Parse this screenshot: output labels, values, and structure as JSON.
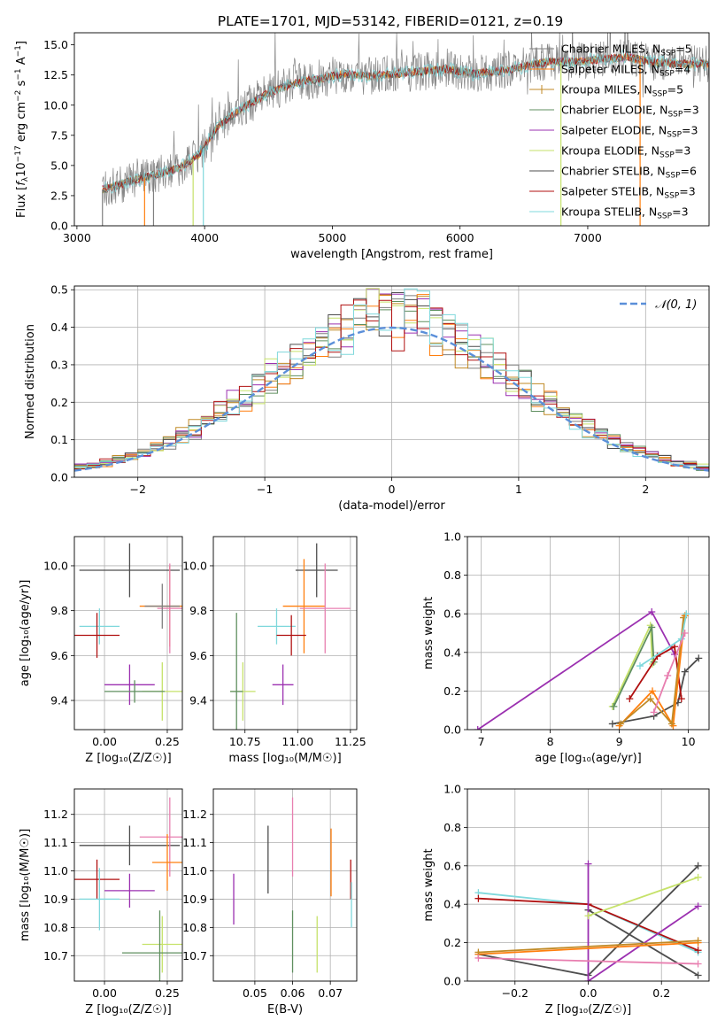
{
  "page": {
    "title": "PLATE=1701, MJD=53142, FIBERID=0121, z=0.19"
  },
  "colors": {
    "chabrier_miles": "#7f7f7f",
    "salpeter_miles": "#ff7f0e",
    "kroupa_miles": "#c08a26",
    "chabrier_elodie": "#5f8f5f",
    "salpeter_elodie": "#9b30b0",
    "kroupa_elodie": "#c6e26a",
    "chabrier_stelib": "#4d4d4d",
    "salpeter_stelib": "#b01010",
    "kroupa_stelib": "#7fd8dc",
    "pink": "#e87fb0",
    "normal_curve": "#5b8fd9",
    "grid": "#b0b0b0"
  },
  "chart_data": [
    {
      "id": "spectrum",
      "type": "line",
      "title": "PLATE=1701, MJD=53142, FIBERID=0121, z=0.19",
      "xlabel": "wavelength [Angstrom, rest frame]",
      "ylabel_parts": [
        "Flux [",
        "f",
        "λ",
        "10",
        "−17",
        " erg cm",
        "−2",
        " s",
        "−1",
        " A",
        "−1",
        "]"
      ],
      "xlim": [
        2980,
        7950
      ],
      "ylim": [
        0,
        16
      ],
      "xticks": [
        3000,
        4000,
        5000,
        6000,
        7000
      ],
      "yticks": [
        0.0,
        2.5,
        5.0,
        7.5,
        10.0,
        12.5,
        15.0
      ],
      "grid": false,
      "legend_position": "top-right",
      "series": [
        {
          "name": "Chabrier MILES",
          "nssp": "5",
          "color_key": "chabrier_miles"
        },
        {
          "name": "Salpeter MILES",
          "nssp": "4",
          "color_key": "salpeter_miles"
        },
        {
          "name": "Kroupa MILES",
          "nssp": "5",
          "color_key": "kroupa_miles"
        },
        {
          "name": "Chabrier ELODIE",
          "nssp": "3",
          "color_key": "chabrier_elodie"
        },
        {
          "name": "Salpeter ELODIE",
          "nssp": "3",
          "color_key": "salpeter_elodie"
        },
        {
          "name": "Kroupa ELODIE",
          "nssp": "3",
          "color_key": "kroupa_elodie"
        },
        {
          "name": "Chabrier STELIB",
          "nssp": "6",
          "color_key": "chabrier_stelib"
        },
        {
          "name": "Salpeter STELIB",
          "nssp": "3",
          "color_key": "salpeter_stelib"
        },
        {
          "name": "Kroupa STELIB",
          "nssp": "3",
          "color_key": "kroupa_stelib"
        }
      ],
      "continuum_x": [
        3200,
        3400,
        3600,
        3800,
        3950,
        4100,
        4300,
        4500,
        4700,
        4900,
        5100,
        5300,
        5500,
        5700,
        5900,
        6100,
        6300,
        6500,
        6700,
        6900,
        7100,
        7300,
        7500,
        7700
      ],
      "continuum_y": [
        3.0,
        3.6,
        4.2,
        4.8,
        5.8,
        8.2,
        9.8,
        11.0,
        11.8,
        12.2,
        12.6,
        12.4,
        12.6,
        12.8,
        13.0,
        12.6,
        12.8,
        13.2,
        13.6,
        13.6,
        13.8,
        14.0,
        13.6,
        13.4
      ],
      "drops": [
        {
          "x": 3200,
          "color_key": "chabrier_miles"
        },
        {
          "x": 3530,
          "color_key": "salpeter_miles"
        },
        {
          "x": 3600,
          "color_key": "chabrier_miles"
        },
        {
          "x": 3910,
          "color_key": "kroupa_elodie"
        },
        {
          "x": 3990,
          "color_key": "kroupa_stelib"
        },
        {
          "x": 6790,
          "color_key": "kroupa_elodie"
        },
        {
          "x": 7410,
          "color_key": "salpeter_miles"
        }
      ]
    },
    {
      "id": "residuals",
      "type": "histogram",
      "xlabel": "(data-model)/error",
      "ylabel": "Normed distribution",
      "xlim": [
        -2.5,
        2.5
      ],
      "ylim": [
        0,
        0.51
      ],
      "xticks": [
        -2,
        -1,
        0,
        1,
        2
      ],
      "yticks": [
        0.0,
        0.1,
        0.2,
        0.3,
        0.4,
        0.5
      ],
      "grid": true,
      "legend_position": "top-right",
      "legend_label": "𝒩(0, 1)",
      "bin_width": 0.1
    },
    {
      "id": "age_vs_z",
      "type": "errorbar",
      "xlabel": "Z [log₁₀(Z/Z☉)]",
      "ylabel": "age  [log₁₀(age/yr)]",
      "xlim": [
        -0.12,
        0.31
      ],
      "ylim": [
        9.27,
        10.13
      ],
      "xticks": [
        0.0,
        0.25
      ],
      "yticks": [
        9.4,
        9.6,
        9.8,
        10.0
      ],
      "grid": true,
      "points": [
        {
          "x": 0.1,
          "y": 9.98,
          "xerr": 0.2,
          "yerr": 0.12,
          "color_key": "chabrier_stelib"
        },
        {
          "x": 0.26,
          "y": 9.82,
          "xerr": 0.12,
          "yerr": 0.18,
          "color_key": "salpeter_miles"
        },
        {
          "x": 0.26,
          "y": 9.81,
          "xerr": 0.05,
          "yerr": 0.2,
          "color_key": "pink"
        },
        {
          "x": 0.23,
          "y": 9.82,
          "xerr": 0.07,
          "yerr": 0.1,
          "color_key": "chabrier_miles"
        },
        {
          "x": -0.02,
          "y": 9.73,
          "xerr": 0.08,
          "yerr": 0.08,
          "color_key": "kroupa_stelib"
        },
        {
          "x": -0.03,
          "y": 9.69,
          "xerr": 0.09,
          "yerr": 0.1,
          "color_key": "salpeter_stelib"
        },
        {
          "x": 0.1,
          "y": 9.47,
          "xerr": 0.1,
          "yerr": 0.09,
          "color_key": "salpeter_elodie"
        },
        {
          "x": 0.23,
          "y": 9.44,
          "xerr": 0.08,
          "yerr": 0.13,
          "color_key": "kroupa_elodie"
        },
        {
          "x": 0.12,
          "y": 9.44,
          "xerr": 0.12,
          "yerr": 0.05,
          "color_key": "chabrier_elodie"
        }
      ]
    },
    {
      "id": "age_vs_mass",
      "type": "errorbar",
      "xlabel": "mass [log₁₀(M/M☉)]",
      "ylabel": "",
      "xlim": [
        10.6,
        11.28
      ],
      "ylim": [
        9.27,
        10.13
      ],
      "xticks": [
        10.75,
        11.0,
        11.25
      ],
      "yticks": [
        9.4,
        9.6,
        9.8,
        10.0
      ],
      "grid": true,
      "points": [
        {
          "x": 11.09,
          "y": 9.98,
          "xerr": 0.1,
          "yerr": 0.12,
          "color_key": "chabrier_stelib"
        },
        {
          "x": 11.03,
          "y": 9.82,
          "xerr": 0.1,
          "yerr": 0.21,
          "color_key": "salpeter_miles"
        },
        {
          "x": 11.13,
          "y": 9.81,
          "xerr": 0.12,
          "yerr": 0.2,
          "color_key": "pink"
        },
        {
          "x": 10.9,
          "y": 9.73,
          "xerr": 0.09,
          "yerr": 0.08,
          "color_key": "kroupa_stelib"
        },
        {
          "x": 10.97,
          "y": 9.69,
          "xerr": 0.07,
          "yerr": 0.09,
          "color_key": "salpeter_stelib"
        },
        {
          "x": 10.93,
          "y": 9.47,
          "xerr": 0.05,
          "yerr": 0.09,
          "color_key": "salpeter_elodie"
        },
        {
          "x": 10.74,
          "y": 9.44,
          "xerr": 0.06,
          "yerr": 0.13,
          "color_key": "kroupa_elodie"
        },
        {
          "x": 10.71,
          "y": 9.44,
          "xerr": 0.03,
          "yerr": 0.35,
          "color_key": "chabrier_elodie"
        }
      ]
    },
    {
      "id": "mw_vs_age",
      "type": "line",
      "xlabel": "age  [log₁₀(age/yr)]",
      "ylabel": "mass weight",
      "xlim": [
        6.8,
        10.3
      ],
      "ylim": [
        0,
        1
      ],
      "xticks": [
        7,
        8,
        9,
        10
      ],
      "yticks": [
        0.0,
        0.2,
        0.4,
        0.6,
        0.8,
        1.0
      ],
      "grid": true,
      "series": [
        {
          "color_key": "salpeter_elodie",
          "x": [
            6.95,
            9.47,
            9.8
          ],
          "y": [
            0.0,
            0.61,
            0.39
          ]
        },
        {
          "color_key": "kroupa_elodie",
          "x": [
            8.9,
            9.45,
            9.48
          ],
          "y": [
            0.12,
            0.54,
            0.34
          ]
        },
        {
          "color_key": "chabrier_elodie",
          "x": [
            8.92,
            9.47,
            9.5
          ],
          "y": [
            0.12,
            0.53,
            0.35
          ]
        },
        {
          "color_key": "chabrier_stelib",
          "x": [
            8.9,
            9.5,
            9.85,
            9.95,
            10.15
          ],
          "y": [
            0.03,
            0.07,
            0.14,
            0.3,
            0.37
          ]
        },
        {
          "color_key": "salpeter_stelib",
          "x": [
            9.15,
            9.55,
            9.8,
            9.9
          ],
          "y": [
            0.16,
            0.38,
            0.43,
            0.16
          ]
        },
        {
          "color_key": "salpeter_miles",
          "x": [
            9.0,
            9.48,
            9.78,
            9.95
          ],
          "y": [
            0.02,
            0.2,
            0.02,
            0.59
          ]
        },
        {
          "color_key": "kroupa_miles",
          "x": [
            9.02,
            9.45,
            9.76,
            9.93
          ],
          "y": [
            0.03,
            0.16,
            0.03,
            0.58
          ]
        },
        {
          "color_key": "kroupa_stelib",
          "x": [
            9.3,
            9.9,
            9.97
          ],
          "y": [
            0.33,
            0.47,
            0.6
          ]
        },
        {
          "color_key": "pink",
          "x": [
            9.5,
            9.7,
            9.95
          ],
          "y": [
            0.09,
            0.28,
            0.5
          ]
        }
      ]
    },
    {
      "id": "mass_vs_z",
      "type": "errorbar",
      "xlabel": "Z [log₁₀(Z/Z☉)]",
      "ylabel": "mass [log₁₀(M/M☉)]",
      "xlim": [
        -0.12,
        0.31
      ],
      "ylim": [
        10.61,
        11.29
      ],
      "xticks": [
        0.0,
        0.25
      ],
      "yticks": [
        10.7,
        10.8,
        10.9,
        11.0,
        11.1,
        11.2
      ],
      "grid": true,
      "points": [
        {
          "x": 0.1,
          "y": 11.09,
          "xerr": 0.2,
          "yerr": 0.07,
          "color_key": "chabrier_stelib"
        },
        {
          "x": 0.26,
          "y": 11.12,
          "xerr": 0.12,
          "yerr": 0.14,
          "color_key": "pink"
        },
        {
          "x": 0.25,
          "y": 11.03,
          "xerr": 0.06,
          "yerr": 0.1,
          "color_key": "salpeter_miles"
        },
        {
          "x": -0.03,
          "y": 10.97,
          "xerr": 0.09,
          "yerr": 0.07,
          "color_key": "salpeter_stelib"
        },
        {
          "x": 0.1,
          "y": 10.93,
          "xerr": 0.1,
          "yerr": 0.06,
          "color_key": "salpeter_elodie"
        },
        {
          "x": -0.02,
          "y": 10.9,
          "xerr": 0.08,
          "yerr": 0.11,
          "color_key": "kroupa_stelib"
        },
        {
          "x": 0.23,
          "y": 10.74,
          "xerr": 0.08,
          "yerr": 0.1,
          "color_key": "kroupa_elodie"
        },
        {
          "x": 0.22,
          "y": 10.71,
          "xerr": 0.15,
          "yerr": 0.15,
          "color_key": "chabrier_elodie"
        }
      ]
    },
    {
      "id": "mass_vs_ebv",
      "type": "errorbar",
      "xlabel": "E(B-V)",
      "ylabel": "",
      "xlim": [
        0.039,
        0.077
      ],
      "ylim": [
        10.61,
        11.29
      ],
      "xticks": [
        0.05,
        0.06,
        0.07
      ],
      "yticks": [
        10.7,
        10.8,
        10.9,
        11.0,
        11.1,
        11.2
      ],
      "grid": true,
      "points": [
        {
          "x": 0.0444,
          "y": 10.9,
          "xerr": 0,
          "yerr": 0.09,
          "color_key": "salpeter_elodie"
        },
        {
          "x": 0.0535,
          "y": 11.04,
          "xerr": 0,
          "yerr": 0.12,
          "color_key": "chabrier_stelib"
        },
        {
          "x": 0.06,
          "y": 11.12,
          "xerr": 0,
          "yerr": 0.14,
          "color_key": "pink"
        },
        {
          "x": 0.06,
          "y": 10.75,
          "xerr": 0,
          "yerr": 0.11,
          "color_key": "chabrier_elodie"
        },
        {
          "x": 0.0665,
          "y": 10.74,
          "xerr": 0,
          "yerr": 0.1,
          "color_key": "kroupa_elodie"
        },
        {
          "x": 0.0702,
          "y": 11.03,
          "xerr": 0,
          "yerr": 0.12,
          "color_key": "salpeter_miles"
        },
        {
          "x": 0.0754,
          "y": 10.97,
          "xerr": 0,
          "yerr": 0.07,
          "color_key": "salpeter_stelib"
        },
        {
          "x": 0.0756,
          "y": 10.88,
          "xerr": 0,
          "yerr": 0.08,
          "color_key": "kroupa_stelib"
        }
      ]
    },
    {
      "id": "mw_vs_z",
      "type": "line",
      "xlabel": "Z [log₁₀(Z/Z☉)]",
      "ylabel": "mass weight",
      "xlim": [
        -0.33,
        0.33
      ],
      "ylim": [
        0,
        1
      ],
      "xticks": [
        -0.2,
        0.0,
        0.2
      ],
      "yticks": [
        0.0,
        0.2,
        0.4,
        0.6,
        0.8,
        1.0
      ],
      "grid": true,
      "series": [
        {
          "color_key": "kroupa_stelib",
          "x": [
            -0.3,
            0.0,
            0.3
          ],
          "y": [
            0.46,
            0.4,
            0.15
          ]
        },
        {
          "color_key": "salpeter_stelib",
          "x": [
            -0.3,
            0.0,
            0.3
          ],
          "y": [
            0.43,
            0.4,
            0.16
          ]
        },
        {
          "color_key": "chabrier_stelib",
          "x": [
            -0.3,
            0.0,
            0.3
          ],
          "y": [
            0.14,
            0.03,
            0.6
          ]
        },
        {
          "color_key": "chabrier_stelib",
          "x": [
            0.0,
            0.3
          ],
          "y": [
            0.37,
            0.03
          ]
        },
        {
          "color_key": "salpeter_elodie",
          "x": [
            0.0,
            0.0,
            0.3
          ],
          "y": [
            0.61,
            0.0,
            0.39
          ]
        },
        {
          "color_key": "kroupa_elodie",
          "x": [
            0.0,
            0.3
          ],
          "y": [
            0.34,
            0.54
          ]
        },
        {
          "color_key": "salpeter_miles",
          "x": [
            -0.3,
            0.3
          ],
          "y": [
            0.14,
            0.2
          ]
        },
        {
          "color_key": "kroupa_miles",
          "x": [
            -0.3,
            0.3
          ],
          "y": [
            0.15,
            0.21
          ]
        },
        {
          "color_key": "pink",
          "x": [
            -0.3,
            0.3
          ],
          "y": [
            0.12,
            0.09
          ]
        }
      ]
    }
  ]
}
